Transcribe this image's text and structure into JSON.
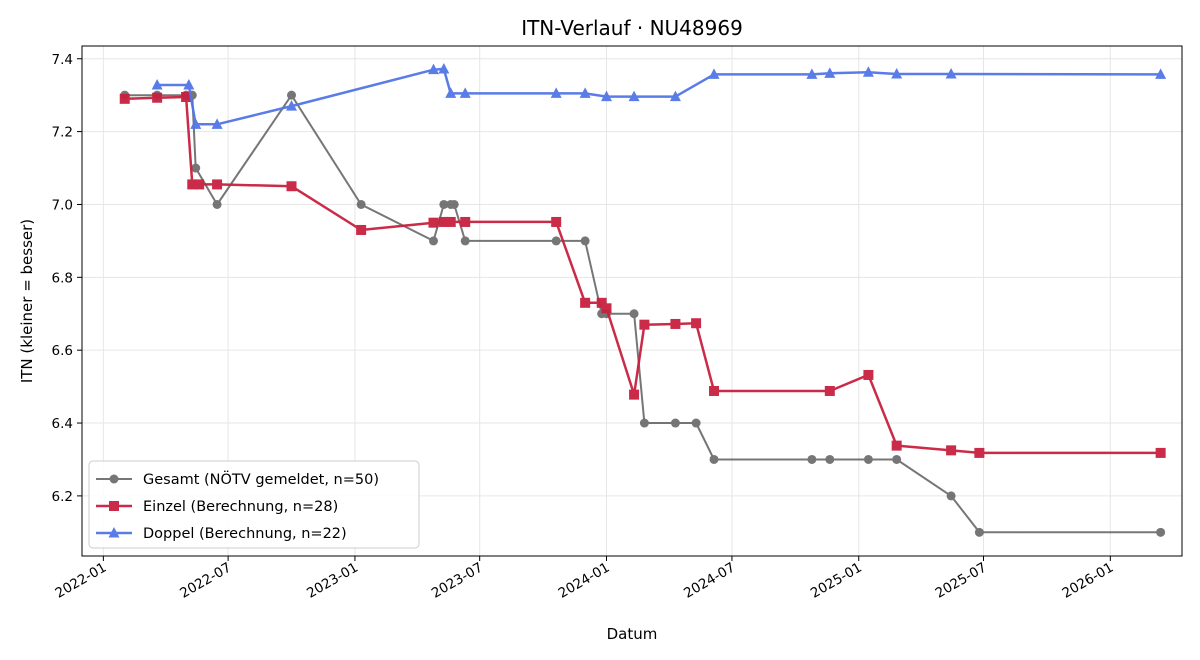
{
  "chart_data": {
    "type": "line",
    "title": "ITN-Verlauf · NU48969",
    "xlabel": "Datum",
    "ylabel": "ITN  (kleiner = besser)",
    "xlim": [
      "2021-12-01",
      "2026-04-15"
    ],
    "ylim": [
      6.035,
      7.435
    ],
    "grid": true,
    "legend_position": "lower left",
    "x_ticks": [
      "2022-01",
      "2022-07",
      "2023-01",
      "2023-07",
      "2024-01",
      "2024-07",
      "2025-01",
      "2025-07",
      "2026-01"
    ],
    "y_ticks": [
      "6.2",
      "6.4",
      "6.6",
      "6.8",
      "7.0",
      "7.2",
      "7.4"
    ],
    "series": [
      {
        "name": "Gesamt (NÖTV gemeldet, n=50)",
        "color": "#555555",
        "marker": "circle",
        "points": [
          [
            "2022-02-01",
            7.3
          ],
          [
            "2022-03-20",
            7.3
          ],
          [
            "2022-05-01",
            7.3
          ],
          [
            "2022-05-10",
            7.3
          ],
          [
            "2022-05-15",
            7.1
          ],
          [
            "2022-06-15",
            7.0
          ],
          [
            "2022-10-01",
            7.3
          ],
          [
            "2023-01-10",
            7.0
          ],
          [
            "2023-04-25",
            6.9
          ],
          [
            "2023-05-10",
            7.0
          ],
          [
            "2023-05-20",
            7.0
          ],
          [
            "2023-05-25",
            7.0
          ],
          [
            "2023-06-10",
            6.9
          ],
          [
            "2023-10-20",
            6.9
          ],
          [
            "2023-12-01",
            6.9
          ],
          [
            "2023-12-25",
            6.7
          ],
          [
            "2024-01-01",
            6.7
          ],
          [
            "2024-02-10",
            6.7
          ],
          [
            "2024-02-25",
            6.4
          ],
          [
            "2024-04-10",
            6.4
          ],
          [
            "2024-05-10",
            6.4
          ],
          [
            "2024-06-05",
            6.3
          ],
          [
            "2024-10-25",
            6.3
          ],
          [
            "2024-11-20",
            6.3
          ],
          [
            "2025-01-15",
            6.3
          ],
          [
            "2025-02-25",
            6.3
          ],
          [
            "2025-05-15",
            6.2
          ],
          [
            "2025-06-25",
            6.1
          ],
          [
            "2026-03-15",
            6.1
          ]
        ]
      },
      {
        "name": "Einzel (Berechnung, n=28)",
        "color": "#c8203f",
        "marker": "square",
        "points": [
          [
            "2022-02-01",
            7.29
          ],
          [
            "2022-03-20",
            7.293
          ],
          [
            "2022-05-01",
            7.295
          ],
          [
            "2022-05-10",
            7.055
          ],
          [
            "2022-05-20",
            7.055
          ],
          [
            "2022-06-15",
            7.055
          ],
          [
            "2022-10-01",
            7.05
          ],
          [
            "2023-01-10",
            6.93
          ],
          [
            "2023-04-25",
            6.95
          ],
          [
            "2023-05-10",
            6.952
          ],
          [
            "2023-05-20",
            6.952
          ],
          [
            "2023-06-10",
            6.952
          ],
          [
            "2023-10-20",
            6.952
          ],
          [
            "2023-12-01",
            6.73
          ],
          [
            "2023-12-25",
            6.73
          ],
          [
            "2024-01-01",
            6.715
          ],
          [
            "2024-02-10",
            6.478
          ],
          [
            "2024-02-25",
            6.67
          ],
          [
            "2024-04-10",
            6.672
          ],
          [
            "2024-05-10",
            6.674
          ],
          [
            "2024-06-05",
            6.488
          ],
          [
            "2024-11-20",
            6.488
          ],
          [
            "2025-01-15",
            6.532
          ],
          [
            "2025-02-25",
            6.338
          ],
          [
            "2025-05-15",
            6.325
          ],
          [
            "2025-06-25",
            6.318
          ],
          [
            "2026-03-15",
            6.318
          ]
        ]
      },
      {
        "name": "Doppel (Berechnung, n=22)",
        "color": "#5275e6",
        "marker": "triangle",
        "points": [
          [
            "2022-03-20",
            7.328
          ],
          [
            "2022-05-05",
            7.328
          ],
          [
            "2022-05-15",
            7.22
          ],
          [
            "2022-06-15",
            7.22
          ],
          [
            "2022-10-01",
            7.27
          ],
          [
            "2023-04-25",
            7.37
          ],
          [
            "2023-05-10",
            7.372
          ],
          [
            "2023-05-20",
            7.305
          ],
          [
            "2023-06-10",
            7.305
          ],
          [
            "2023-10-20",
            7.305
          ],
          [
            "2023-12-01",
            7.305
          ],
          [
            "2024-01-01",
            7.296
          ],
          [
            "2024-02-10",
            7.296
          ],
          [
            "2024-04-10",
            7.296
          ],
          [
            "2024-06-05",
            7.357
          ],
          [
            "2024-10-25",
            7.357
          ],
          [
            "2024-11-20",
            7.36
          ],
          [
            "2025-01-15",
            7.363
          ],
          [
            "2025-02-25",
            7.358
          ],
          [
            "2025-05-15",
            7.358
          ],
          [
            "2026-03-15",
            7.357
          ]
        ]
      }
    ]
  }
}
